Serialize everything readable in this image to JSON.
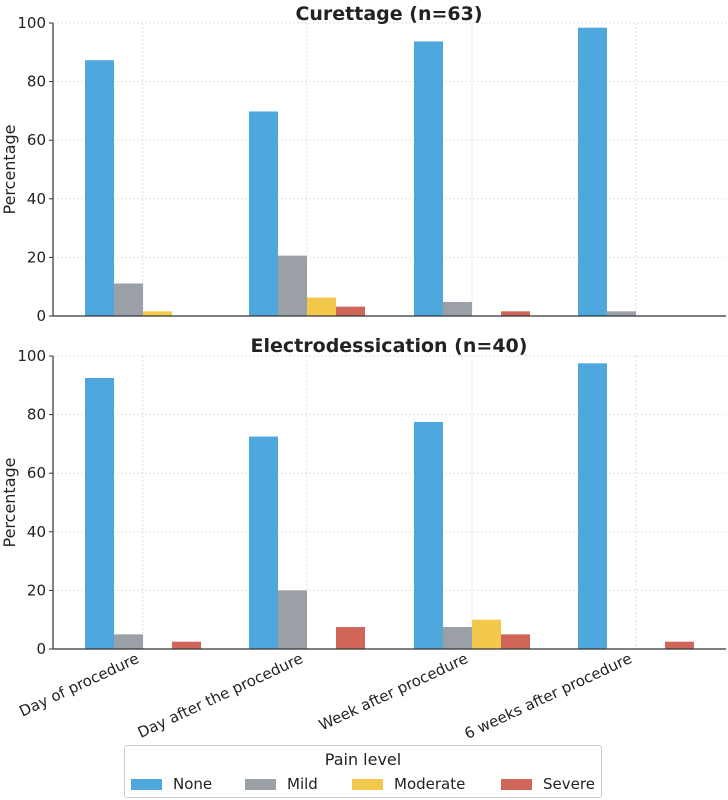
{
  "chart_data": [
    {
      "type": "bar",
      "title": "Curettage (n=63)",
      "xlabel": "",
      "ylabel": "Percentage",
      "ylim": [
        0,
        100
      ],
      "yticks": [
        "0",
        "20",
        "40",
        "60",
        "80",
        "100"
      ],
      "grid": true,
      "categories": [
        "Day of procedure",
        "Day after the procedure",
        "Week after procedure",
        "6 weeks after procedure"
      ],
      "series": [
        {
          "name": "None",
          "values": [
            87.3,
            69.8,
            93.7,
            98.4
          ]
        },
        {
          "name": "Mild",
          "values": [
            11.1,
            20.6,
            4.8,
            1.6
          ]
        },
        {
          "name": "Moderate",
          "values": [
            1.6,
            6.3,
            0,
            0
          ]
        },
        {
          "name": "Severe",
          "values": [
            0,
            3.2,
            1.6,
            0
          ]
        }
      ]
    },
    {
      "type": "bar",
      "title": "Electrodessication (n=40)",
      "xlabel": "",
      "ylabel": "Percentage",
      "ylim": [
        0,
        100
      ],
      "yticks": [
        "0",
        "20",
        "40",
        "60",
        "80",
        "100"
      ],
      "grid": true,
      "categories": [
        "Day of procedure",
        "Day after the procedure",
        "Week after procedure",
        "6 weeks after procedure"
      ],
      "series": [
        {
          "name": "None",
          "values": [
            92.5,
            72.5,
            77.5,
            97.5
          ]
        },
        {
          "name": "Mild",
          "values": [
            5.0,
            20.0,
            7.5,
            0
          ]
        },
        {
          "name": "Moderate",
          "values": [
            0,
            0,
            10.0,
            0
          ]
        },
        {
          "name": "Severe",
          "values": [
            2.5,
            7.5,
            5.0,
            2.5
          ]
        }
      ]
    }
  ],
  "legend": {
    "title": "Pain level",
    "entries": [
      {
        "label": "None",
        "color": "#4ea8de"
      },
      {
        "label": "Mild",
        "color": "#9aa0a6"
      },
      {
        "label": "Moderate",
        "color": "#f2c94c"
      },
      {
        "label": "Severe",
        "color": "#d0665a"
      }
    ],
    "placement": "bottom-center"
  }
}
